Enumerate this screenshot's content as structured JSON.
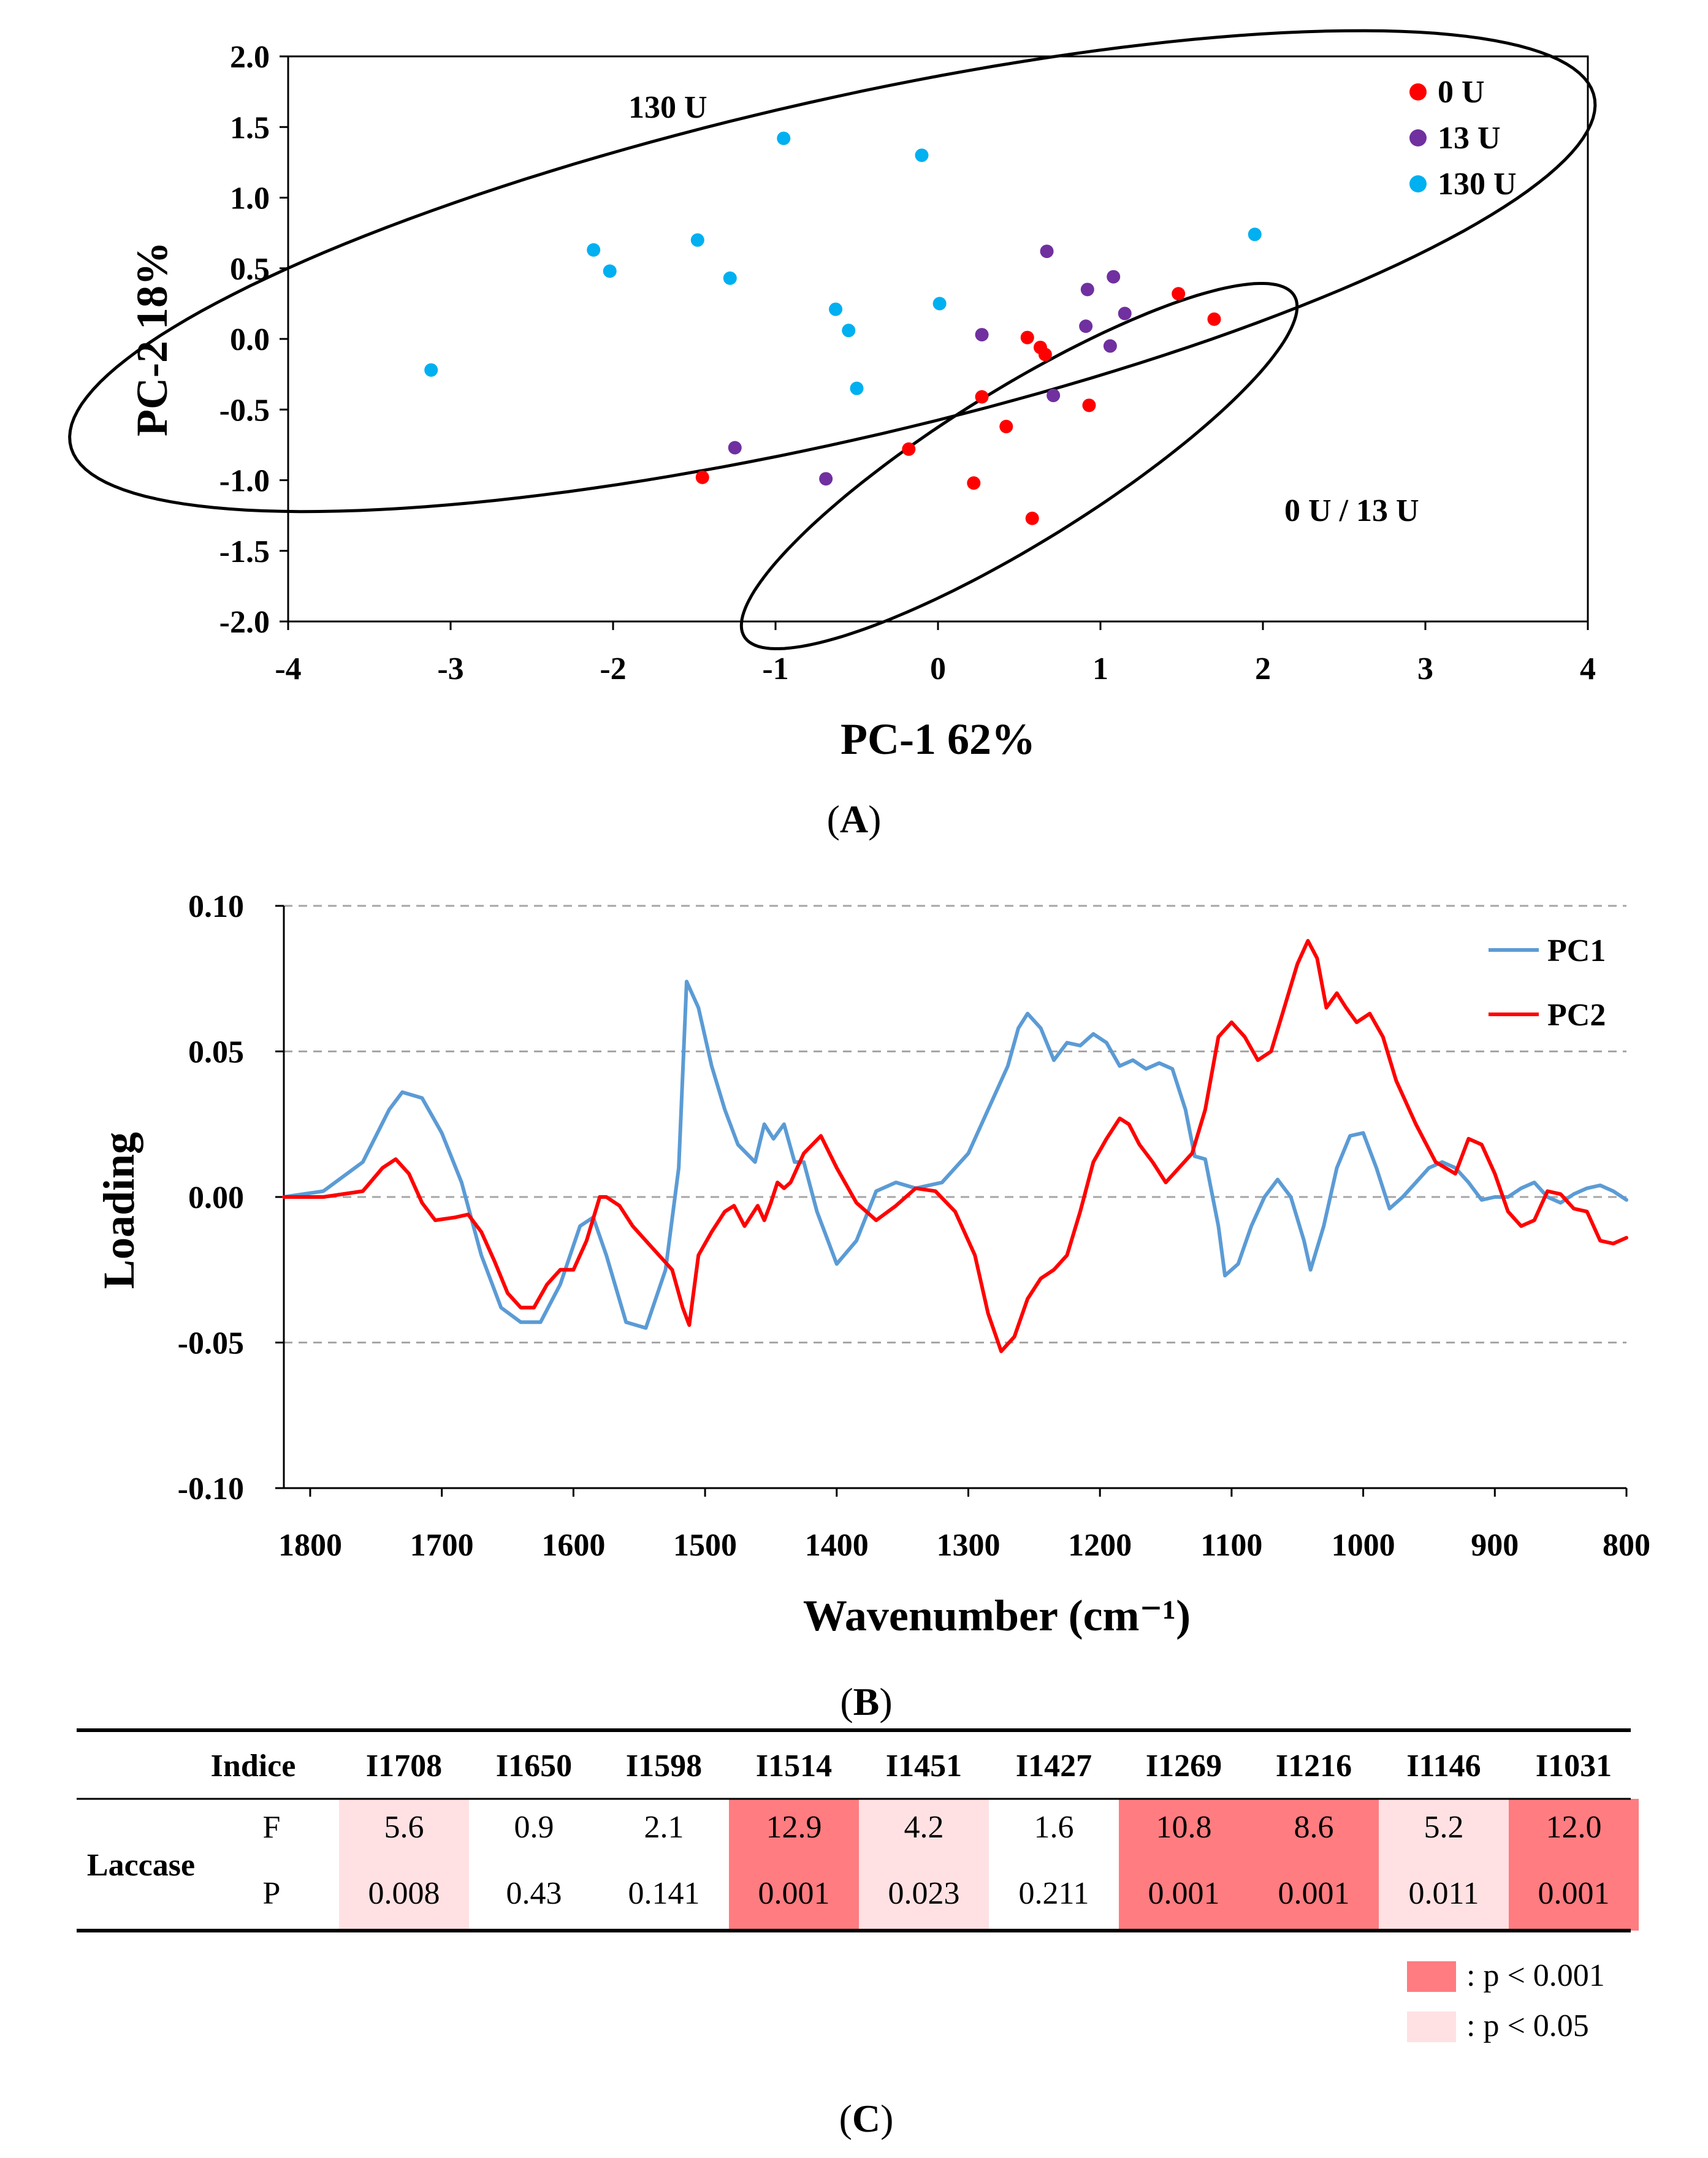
{
  "figure": {
    "panel_labels": [
      "A",
      "B",
      "C"
    ]
  },
  "chart_data": [
    {
      "type": "scatter",
      "panel": "A",
      "xlabel": "PC-1 62%",
      "ylabel": "PC-2 18%",
      "xlim": [
        -4,
        4
      ],
      "ylim": [
        -2.0,
        2.0
      ],
      "xticks": [
        "-4",
        "-3",
        "-2",
        "-1",
        "0",
        "1",
        "2",
        "3",
        "4"
      ],
      "yticks": [
        "2.0",
        "1.5",
        "1.0",
        "0.5",
        "0.0",
        "-0.5",
        "-1.0",
        "-1.5",
        "-2.0"
      ],
      "legend_position": "top-right",
      "annotations": [
        "130 U",
        "0 U / 13 U"
      ],
      "colors": {
        "0 U": "#ff0000",
        "13 U": "#7030a0",
        "130 U": "#00b0f0"
      },
      "series": [
        {
          "name": "0 U",
          "points": [
            [
              -1.45,
              -0.98
            ],
            [
              -0.18,
              -0.78
            ],
            [
              0.22,
              -1.02
            ],
            [
              0.27,
              -0.41
            ],
            [
              0.42,
              -0.62
            ],
            [
              0.55,
              0.01
            ],
            [
              0.58,
              -1.27
            ],
            [
              0.63,
              -0.06
            ],
            [
              0.66,
              -0.11
            ],
            [
              0.93,
              -0.47
            ],
            [
              1.48,
              0.32
            ],
            [
              1.7,
              0.14
            ]
          ]
        },
        {
          "name": "13 U",
          "points": [
            [
              -1.25,
              -0.77
            ],
            [
              -0.69,
              -0.99
            ],
            [
              0.27,
              0.03
            ],
            [
              0.67,
              0.62
            ],
            [
              0.71,
              -0.4
            ],
            [
              0.91,
              0.09
            ],
            [
              0.92,
              0.35
            ],
            [
              1.06,
              -0.05
            ],
            [
              1.08,
              0.44
            ],
            [
              1.15,
              0.18
            ]
          ]
        },
        {
          "name": "130 U",
          "points": [
            [
              -3.12,
              -0.22
            ],
            [
              -2.12,
              0.63
            ],
            [
              -2.02,
              0.48
            ],
            [
              -1.48,
              0.7
            ],
            [
              -1.28,
              0.43
            ],
            [
              -0.95,
              1.42
            ],
            [
              -0.63,
              0.21
            ],
            [
              -0.55,
              0.06
            ],
            [
              -0.5,
              -0.35
            ],
            [
              -0.1,
              1.3
            ],
            [
              0.01,
              0.25
            ],
            [
              1.95,
              0.74
            ]
          ]
        }
      ],
      "ellipses": [
        {
          "label": "130 U",
          "center": [
            -0.65,
            0.48
          ],
          "semi_axes": [
            4.85,
            1.19
          ],
          "rotation_deg": 15.0
        },
        {
          "label": "0 U / 13 U",
          "center": [
            0.5,
            -0.9
          ],
          "semi_axes": [
            2.08,
            0.52
          ],
          "rotation_deg": 36.0
        }
      ]
    },
    {
      "type": "line",
      "panel": "B",
      "xlabel": "Wavenumber (cm⁻¹)",
      "ylabel": "Loading",
      "xlim": [
        1820,
        800
      ],
      "ylim": [
        -0.1,
        0.1
      ],
      "xticks": [
        "1800",
        "1700",
        "1600",
        "1500",
        "1400",
        "1300",
        "1200",
        "1100",
        "1000",
        "900",
        "800"
      ],
      "yticks": [
        "0.10",
        "0.05",
        "0.00",
        "-0.05",
        "-0.10"
      ],
      "grid": "dashed horizontal",
      "legend_position": "top-right",
      "colors": {
        "PC1": "#5b9bd5",
        "PC2": "#ff0000"
      },
      "series": [
        {
          "name": "PC1",
          "x": [
            1820,
            1790,
            1760,
            1740,
            1730,
            1715,
            1700,
            1685,
            1670,
            1655,
            1640,
            1625,
            1610,
            1595,
            1585,
            1575,
            1560,
            1545,
            1530,
            1520,
            1514,
            1505,
            1495,
            1485,
            1475,
            1462,
            1455,
            1448,
            1440,
            1432,
            1425,
            1415,
            1400,
            1385,
            1370,
            1355,
            1340,
            1320,
            1300,
            1285,
            1270,
            1262,
            1255,
            1245,
            1235,
            1225,
            1215,
            1205,
            1195,
            1185,
            1175,
            1165,
            1155,
            1145,
            1135,
            1128,
            1120,
            1110,
            1105,
            1095,
            1085,
            1075,
            1065,
            1055,
            1045,
            1040,
            1030,
            1020,
            1010,
            1000,
            990,
            980,
            970,
            960,
            950,
            940,
            930,
            920,
            910,
            900,
            890,
            880,
            870,
            860,
            850,
            840,
            830,
            820,
            810,
            800
          ],
          "y": [
            0.0,
            0.002,
            0.012,
            0.03,
            0.036,
            0.034,
            0.022,
            0.005,
            -0.02,
            -0.038,
            -0.043,
            -0.043,
            -0.03,
            -0.01,
            -0.007,
            -0.02,
            -0.043,
            -0.045,
            -0.025,
            0.01,
            0.074,
            0.065,
            0.045,
            0.03,
            0.018,
            0.012,
            0.025,
            0.02,
            0.025,
            0.012,
            0.012,
            -0.005,
            -0.023,
            -0.015,
            0.002,
            0.005,
            0.003,
            0.005,
            0.015,
            0.03,
            0.045,
            0.058,
            0.063,
            0.058,
            0.047,
            0.053,
            0.052,
            0.056,
            0.053,
            0.045,
            0.047,
            0.044,
            0.046,
            0.044,
            0.03,
            0.014,
            0.013,
            -0.01,
            -0.027,
            -0.023,
            -0.01,
            0.0,
            0.006,
            0.0,
            -0.015,
            -0.025,
            -0.01,
            0.01,
            0.021,
            0.022,
            0.01,
            -0.004,
            0.0,
            0.005,
            0.01,
            0.012,
            0.01,
            0.005,
            -0.001,
            0.0,
            0.0,
            0.003,
            0.005,
            0.0,
            -0.002,
            0.001,
            0.003,
            0.004,
            0.002,
            -0.001
          ]
        },
        {
          "name": "PC2",
          "x": [
            1820,
            1790,
            1760,
            1745,
            1735,
            1725,
            1715,
            1705,
            1690,
            1680,
            1670,
            1660,
            1650,
            1640,
            1630,
            1620,
            1610,
            1600,
            1590,
            1580,
            1575,
            1565,
            1555,
            1545,
            1535,
            1525,
            1517,
            1512,
            1505,
            1495,
            1485,
            1478,
            1470,
            1460,
            1455,
            1450,
            1445,
            1440,
            1435,
            1425,
            1412,
            1400,
            1385,
            1370,
            1355,
            1340,
            1325,
            1310,
            1295,
            1285,
            1275,
            1265,
            1255,
            1245,
            1235,
            1225,
            1215,
            1205,
            1195,
            1185,
            1178,
            1170,
            1160,
            1150,
            1140,
            1130,
            1120,
            1110,
            1100,
            1090,
            1080,
            1070,
            1060,
            1050,
            1042,
            1035,
            1028,
            1020,
            1013,
            1005,
            995,
            985,
            975,
            960,
            945,
            930,
            920,
            910,
            900,
            890,
            880,
            870,
            860,
            850,
            840,
            830,
            820,
            810,
            800
          ],
          "y": [
            0.0,
            0.0,
            0.002,
            0.01,
            0.013,
            0.008,
            -0.002,
            -0.008,
            -0.007,
            -0.006,
            -0.012,
            -0.022,
            -0.033,
            -0.038,
            -0.038,
            -0.03,
            -0.025,
            -0.025,
            -0.015,
            0.0,
            0.0,
            -0.003,
            -0.01,
            -0.015,
            -0.02,
            -0.025,
            -0.038,
            -0.044,
            -0.02,
            -0.012,
            -0.005,
            -0.003,
            -0.01,
            -0.003,
            -0.008,
            -0.002,
            0.005,
            0.003,
            0.005,
            0.015,
            0.021,
            0.01,
            -0.002,
            -0.008,
            -0.003,
            0.003,
            0.002,
            -0.005,
            -0.02,
            -0.04,
            -0.053,
            -0.048,
            -0.035,
            -0.028,
            -0.025,
            -0.02,
            -0.005,
            0.012,
            0.02,
            0.027,
            0.025,
            0.018,
            0.012,
            0.005,
            0.01,
            0.015,
            0.03,
            0.055,
            0.06,
            0.055,
            0.047,
            0.05,
            0.065,
            0.08,
            0.088,
            0.082,
            0.065,
            0.07,
            0.065,
            0.06,
            0.063,
            0.055,
            0.04,
            0.025,
            0.012,
            0.008,
            0.02,
            0.018,
            0.008,
            -0.005,
            -0.01,
            -0.008,
            0.002,
            0.001,
            -0.004,
            -0.005,
            -0.015,
            -0.016,
            -0.014
          ]
        }
      ]
    },
    {
      "type": "table",
      "panel": "C",
      "row_group": "Laccase",
      "header_label": "Indice",
      "indices": [
        "I1708",
        "I1650",
        "I1598",
        "I1514",
        "I1451",
        "I1427",
        "I1269",
        "I1216",
        "I1146",
        "I1031"
      ],
      "row_labels": [
        "F",
        "P"
      ],
      "F": [
        "5.6",
        "0.9",
        "2.1",
        "12.9",
        "4.2",
        "1.6",
        "10.8",
        "8.6",
        "5.2",
        "12.0"
      ],
      "P": [
        "0.008",
        "0.43",
        "0.141",
        "0.001",
        "0.023",
        "0.211",
        "0.001",
        "0.001",
        "0.011",
        "0.001"
      ],
      "significance": [
        "p<0.05",
        "none",
        "none",
        "p<0.001",
        "p<0.05",
        "none",
        "p<0.001",
        "p<0.001",
        "p<0.05",
        "p<0.001"
      ],
      "colors": {
        "p<0.001": "#ff7c80",
        "p<0.05": "#ffe1e3"
      },
      "key": [
        {
          "level": "p<0.001",
          "label": ": p < 0.001"
        },
        {
          "level": "p<0.05",
          "label": ": p < 0.05"
        }
      ]
    }
  ]
}
